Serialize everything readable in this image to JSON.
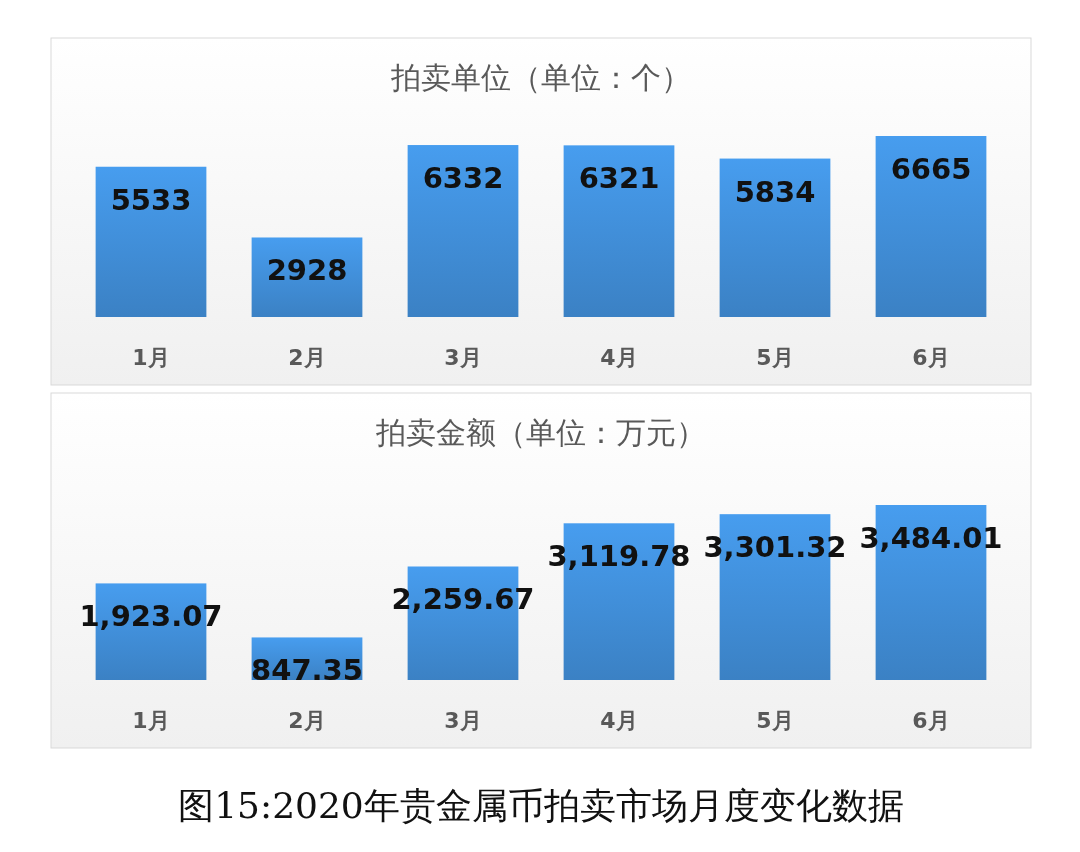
{
  "chart_data": [
    {
      "type": "bar",
      "title": "拍卖单位（单位：个）",
      "categories": [
        "1月",
        "2月",
        "3月",
        "4月",
        "5月",
        "6月"
      ],
      "values": [
        5533,
        2928,
        6332,
        6321,
        5834,
        6665
      ],
      "color": "#3f8bd3",
      "data_labels": true
    },
    {
      "type": "bar",
      "title": "拍卖金额（单位：万元）",
      "categories": [
        "1月",
        "2月",
        "3月",
        "4月",
        "5月",
        "6月"
      ],
      "values": [
        1923.07,
        847.35,
        2259.67,
        3119.78,
        3301.32,
        3484.01
      ],
      "color": "#3f8bd3",
      "value_labels": [
        "1,923.07",
        "847.35",
        "2,259.67",
        "3,119.78",
        "3,301.32",
        "3,484.01"
      ],
      "annotations": [
        "图15:2020年贵金属币拍卖市场月度变化数据"
      ]
    }
  ]
}
